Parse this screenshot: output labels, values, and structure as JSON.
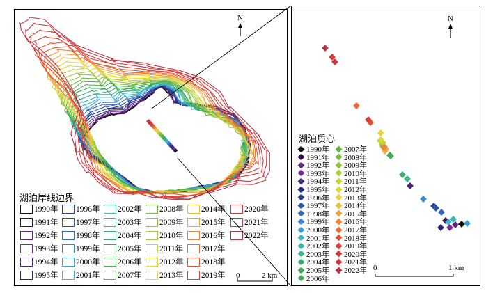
{
  "map": {
    "left": {
      "legend_title": "湖泊岸线边界",
      "north_label": "N",
      "scale": {
        "start": "0",
        "end": "2 km"
      }
    },
    "right": {
      "legend_title": "湖泊质心",
      "north_label": "N",
      "scale": {
        "start": "0",
        "end": "1 km"
      }
    }
  },
  "years": [
    {
      "label": "1990年",
      "color": "#111111"
    },
    {
      "label": "1991年",
      "color": "#3a1148"
    },
    {
      "label": "1992年",
      "color": "#5e2a80"
    },
    {
      "label": "1993年",
      "color": "#7a2a95"
    },
    {
      "label": "1994年",
      "color": "#48287f"
    },
    {
      "label": "1995年",
      "color": "#26287a"
    },
    {
      "label": "1996年",
      "color": "#2b3f93"
    },
    {
      "label": "1997年",
      "color": "#2f55aa"
    },
    {
      "label": "1998年",
      "color": "#346bbf"
    },
    {
      "label": "1999年",
      "color": "#3a85cf"
    },
    {
      "label": "2000年",
      "color": "#3d9fd8"
    },
    {
      "label": "2001年",
      "color": "#3cb4cf"
    },
    {
      "label": "2002年",
      "color": "#3ab8ad"
    },
    {
      "label": "2003年",
      "color": "#3bb48f"
    },
    {
      "label": "2004年",
      "color": "#3aaf6e"
    },
    {
      "label": "2005年",
      "color": "#3aa655"
    },
    {
      "label": "2006年",
      "color": "#47ad4a"
    },
    {
      "label": "2007年",
      "color": "#5db443"
    },
    {
      "label": "2008年",
      "color": "#75bc40"
    },
    {
      "label": "2009年",
      "color": "#8fc43c"
    },
    {
      "label": "2010年",
      "color": "#a9cc3a"
    },
    {
      "label": "2011年",
      "color": "#c3d43a"
    },
    {
      "label": "2012年",
      "color": "#dcd83a"
    },
    {
      "label": "2013年",
      "color": "#ecd23c"
    },
    {
      "label": "2014年",
      "color": "#f2bd3d"
    },
    {
      "label": "2015年",
      "color": "#f1a23b"
    },
    {
      "label": "2016年",
      "color": "#ee853a"
    },
    {
      "label": "2017年",
      "color": "#e96a38"
    },
    {
      "label": "2018年",
      "color": "#e45236"
    },
    {
      "label": "2019年",
      "color": "#de3c35"
    },
    {
      "label": "2020年",
      "color": "#d63a3a"
    },
    {
      "label": "2021年",
      "color": "#c93940"
    },
    {
      "label": "2022年",
      "color": "#b83545"
    }
  ]
}
